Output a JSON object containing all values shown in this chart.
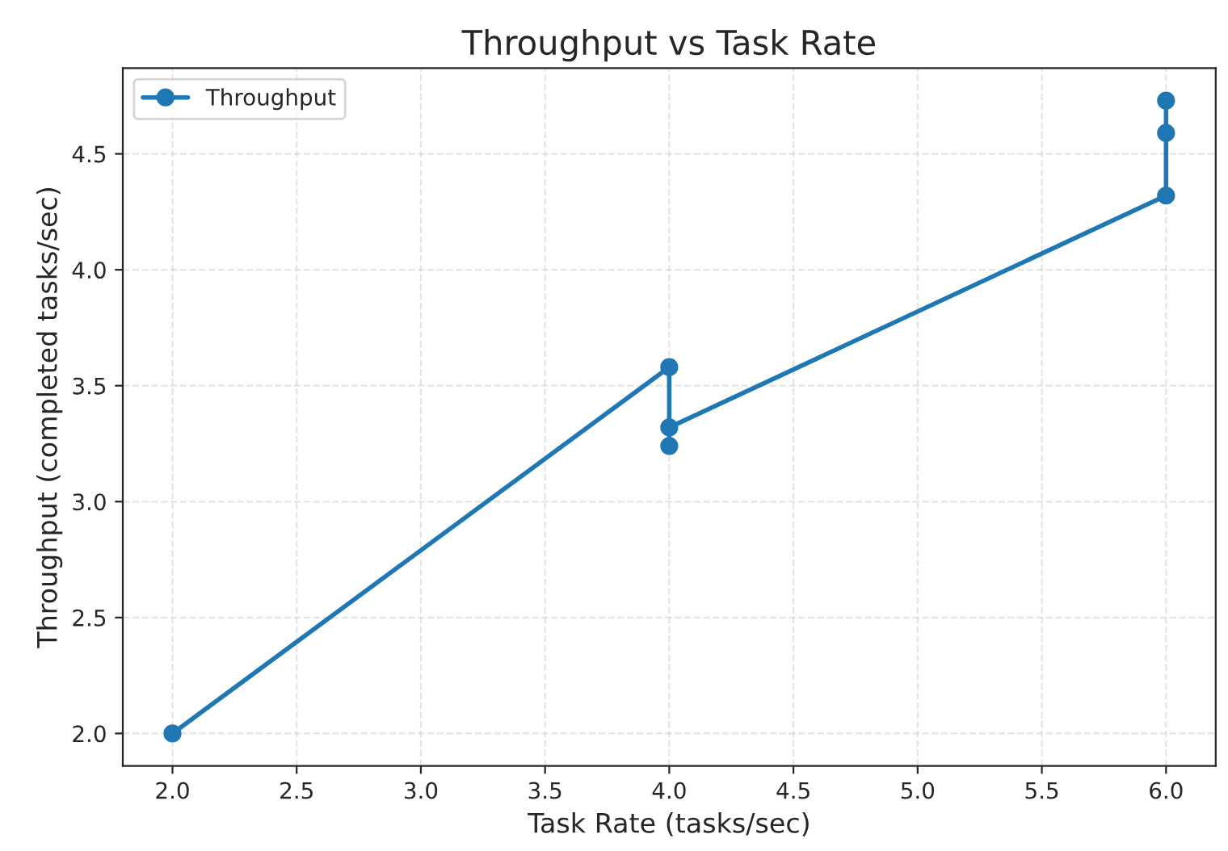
{
  "chart_data": {
    "type": "line",
    "title": "Throughput vs Task Rate",
    "xlabel": "Task Rate (tasks/sec)",
    "ylabel": "Throughput (completed tasks/sec)",
    "series": [
      {
        "name": "Throughput",
        "color": "#1f77b4",
        "x": [
          2,
          4,
          4,
          4,
          6,
          6,
          6
        ],
        "values": [
          2.0,
          3.58,
          3.24,
          3.32,
          4.32,
          4.59,
          4.73
        ]
      }
    ],
    "xlim": [
      1.8,
      6.2
    ],
    "xticks": [
      {
        "value": 2,
        "label": "2.0"
      },
      2.5,
      {
        "value": 3,
        "label": "3.0"
      },
      3.5,
      {
        "value": 4,
        "label": "4.0"
      },
      4.5,
      {
        "value": 5,
        "label": "5.0"
      },
      5.5,
      {
        "value": 6,
        "label": "6.0"
      }
    ],
    "ylim": [
      1.86,
      4.87
    ],
    "yticks": [
      {
        "value": 2,
        "label": "2.0"
      },
      2.5,
      {
        "value": 3,
        "label": "3.0"
      },
      3.5,
      {
        "value": 4,
        "label": "4.0"
      },
      4.5
    ],
    "grid": true,
    "legend": "top left",
    "marker": "circle",
    "line_style": "solid"
  }
}
